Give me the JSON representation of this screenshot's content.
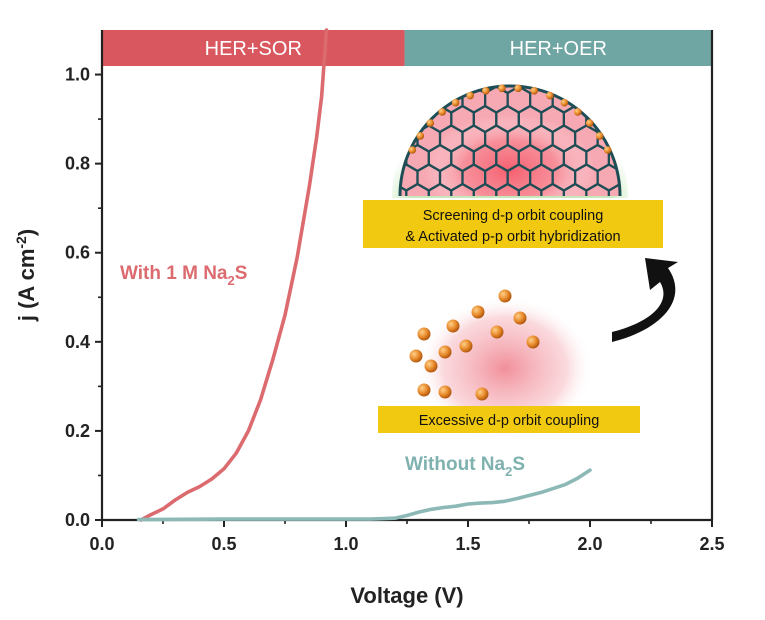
{
  "chart_data": {
    "type": "line",
    "xlabel": "Voltage (V)",
    "ylabel": "j (A cm⁻²)",
    "ylabel_parts": {
      "main": "j (A cm",
      "sup": "-2",
      "close": ")"
    },
    "xlim": [
      0.0,
      2.5
    ],
    "ylim": [
      0.0,
      1.1
    ],
    "xticks": [
      "0.0",
      "0.5",
      "1.0",
      "1.5",
      "2.0",
      "2.5"
    ],
    "yticks": [
      "0.0",
      "0.2",
      "0.4",
      "0.6",
      "0.8",
      "1.0"
    ],
    "regions": [
      {
        "label": "HER+SOR",
        "x_range": [
          0.0,
          1.24
        ],
        "color": "#d9575f"
      },
      {
        "label": "HER+OER",
        "x_range": [
          1.24,
          2.5
        ],
        "color": "#6fa5a3"
      }
    ],
    "series": [
      {
        "name": "With 1 M Na2S",
        "label_parts": {
          "main": "With 1 M Na",
          "sub": "2",
          "tail": "S"
        },
        "color": "#dc6b70",
        "points": [
          [
            0.16,
            0.0
          ],
          [
            0.2,
            0.012
          ],
          [
            0.25,
            0.025
          ],
          [
            0.3,
            0.045
          ],
          [
            0.35,
            0.062
          ],
          [
            0.4,
            0.075
          ],
          [
            0.45,
            0.092
          ],
          [
            0.5,
            0.115
          ],
          [
            0.55,
            0.15
          ],
          [
            0.6,
            0.2
          ],
          [
            0.65,
            0.27
          ],
          [
            0.7,
            0.36
          ],
          [
            0.75,
            0.46
          ],
          [
            0.8,
            0.59
          ],
          [
            0.85,
            0.75
          ],
          [
            0.88,
            0.86
          ],
          [
            0.9,
            0.95
          ],
          [
            0.92,
            1.1
          ]
        ]
      },
      {
        "name": "Without Na2S",
        "label_parts": {
          "main": "Without Na",
          "sub": "2",
          "tail": "S"
        },
        "color": "#8cb9b6",
        "points": [
          [
            0.15,
            0.001
          ],
          [
            0.5,
            0.002
          ],
          [
            0.9,
            0.002
          ],
          [
            1.1,
            0.002
          ],
          [
            1.2,
            0.004
          ],
          [
            1.25,
            0.01
          ],
          [
            1.3,
            0.018
          ],
          [
            1.35,
            0.024
          ],
          [
            1.4,
            0.028
          ],
          [
            1.45,
            0.031
          ],
          [
            1.5,
            0.036
          ],
          [
            1.55,
            0.038
          ],
          [
            1.6,
            0.039
          ],
          [
            1.65,
            0.042
          ],
          [
            1.7,
            0.048
          ],
          [
            1.8,
            0.062
          ],
          [
            1.9,
            0.08
          ],
          [
            1.95,
            0.094
          ],
          [
            2.0,
            0.112
          ]
        ]
      }
    ],
    "annotations": [
      {
        "text_lines": [
          "Screening d-p orbit coupling",
          "& Activated p-p orbit hybridization"
        ],
        "box_color": "#f2c911"
      },
      {
        "text_lines": [
          "Excessive d-p orbit coupling"
        ],
        "box_color": "#f2c911"
      }
    ]
  },
  "colors": {
    "axis": "#222222",
    "sor_band": "#d9575f",
    "oer_band": "#6fa5a3",
    "with_na2s": "#dc6b70",
    "without_na2s": "#8cb9b6",
    "label_box": "#f2c911",
    "dot": "#e0862a",
    "glow": "#f56d7c",
    "cage": "#1e4d56"
  }
}
